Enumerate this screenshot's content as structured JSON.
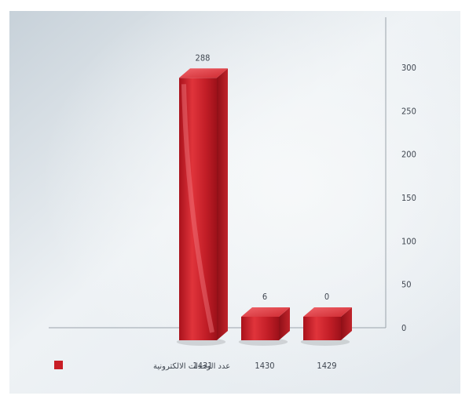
{
  "chart_data": {
    "type": "bar",
    "categories": [
      "1431",
      "1430",
      "1429"
    ],
    "series": [
      {
        "name": "عدد الوحدات الالكترونية",
        "values": [
          288,
          6,
          0
        ]
      }
    ],
    "data_labels": [
      "288",
      "6",
      "0"
    ],
    "yticks": [
      "300",
      "250",
      "200",
      "150",
      "100",
      "50",
      "0"
    ],
    "ylim": [
      0,
      300
    ],
    "y_axis_side": "right",
    "grid": false,
    "legend_position": "bottom-left",
    "bar_color": "#c81d25"
  }
}
